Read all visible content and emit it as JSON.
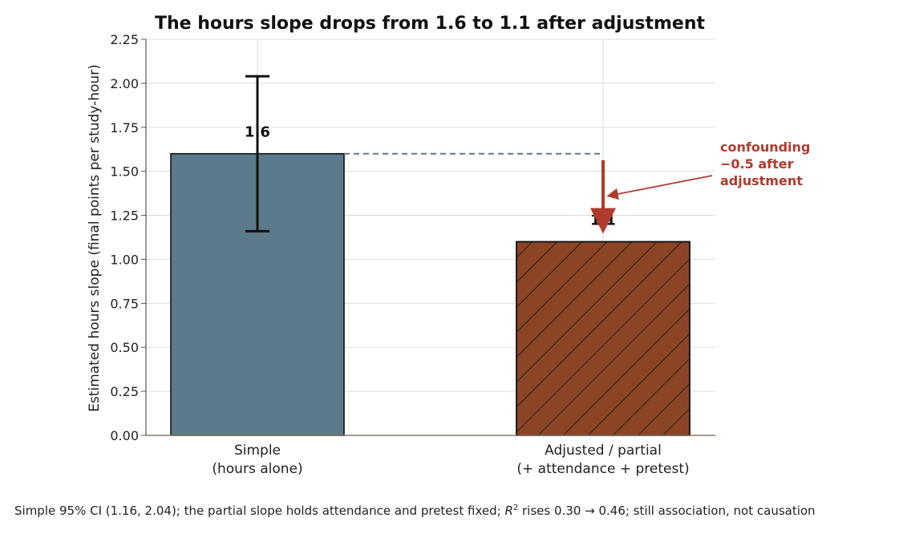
{
  "chart_data": {
    "type": "bar",
    "title": "The hours slope drops from 1.6 to 1.1 after adjustment",
    "ylabel": "Estimated hours slope (final points per study-hour)",
    "xlabel": "",
    "ylim": [
      0,
      2.25
    ],
    "yticks": [
      "0.00",
      "0.25",
      "0.50",
      "0.75",
      "1.00",
      "1.25",
      "1.50",
      "1.75",
      "2.00",
      "2.25"
    ],
    "grid": true,
    "categories": [
      [
        "Simple",
        "(hours alone)"
      ],
      [
        "Adjusted / partial",
        "(+ attendance + pretest)"
      ]
    ],
    "values": [
      1.6,
      1.1
    ],
    "value_labels": [
      "1.6",
      "1.1"
    ],
    "error_bar": {
      "category_index": 0,
      "low": 1.16,
      "high": 2.04
    },
    "bar_colors": [
      "#5b7a8c",
      "#8b4526"
    ],
    "reference_line": {
      "value": 1.6,
      "style": "dashed",
      "color": "#5b7a8c"
    },
    "annotation": {
      "lines": [
        "confounding",
        "−0.5 after",
        "adjustment"
      ],
      "color": "#b03a2e"
    }
  },
  "caption": {
    "prefix": "Simple 95% CI (1.16, 2.04); the partial slope holds attendance and pretest fixed; ",
    "r": "R",
    "sup": "2",
    "suffix": " rises 0.30 → 0.46; still association, not causation"
  }
}
